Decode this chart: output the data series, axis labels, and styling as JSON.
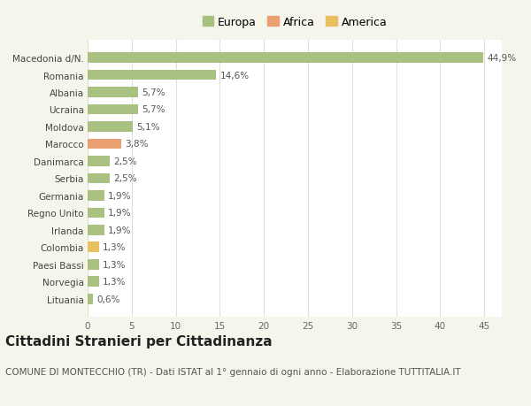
{
  "categories": [
    "Lituania",
    "Norvegia",
    "Paesi Bassi",
    "Colombia",
    "Irlanda",
    "Regno Unito",
    "Germania",
    "Serbia",
    "Danimarca",
    "Marocco",
    "Moldova",
    "Ucraina",
    "Albania",
    "Romania",
    "Macedonia d/N."
  ],
  "values": [
    0.6,
    1.3,
    1.3,
    1.3,
    1.9,
    1.9,
    1.9,
    2.5,
    2.5,
    3.8,
    5.1,
    5.7,
    5.7,
    14.6,
    44.9
  ],
  "colors": [
    "#a8c080",
    "#a8c080",
    "#a8c080",
    "#e8c060",
    "#a8c080",
    "#a8c080",
    "#a8c080",
    "#a8c080",
    "#a8c080",
    "#e8a070",
    "#a8c080",
    "#a8c080",
    "#a8c080",
    "#a8c080",
    "#a8c080"
  ],
  "labels": [
    "0,6%",
    "1,3%",
    "1,3%",
    "1,3%",
    "1,9%",
    "1,9%",
    "1,9%",
    "2,5%",
    "2,5%",
    "3,8%",
    "5,1%",
    "5,7%",
    "5,7%",
    "14,6%",
    "44,9%"
  ],
  "legend_labels": [
    "Europa",
    "Africa",
    "America"
  ],
  "legend_colors": [
    "#a8c080",
    "#e8a070",
    "#e8c060"
  ],
  "title": "Cittadini Stranieri per Cittadinanza",
  "subtitle": "COMUNE DI MONTECCHIO (TR) - Dati ISTAT al 1° gennaio di ogni anno - Elaborazione TUTTITALIA.IT",
  "xlim": [
    0,
    47
  ],
  "background_color": "#f5f5eb",
  "bar_background": "#ffffff",
  "grid_color": "#e0e0d0",
  "title_fontsize": 11,
  "subtitle_fontsize": 7.5,
  "label_fontsize": 7.5,
  "tick_fontsize": 7.5,
  "legend_fontsize": 9
}
